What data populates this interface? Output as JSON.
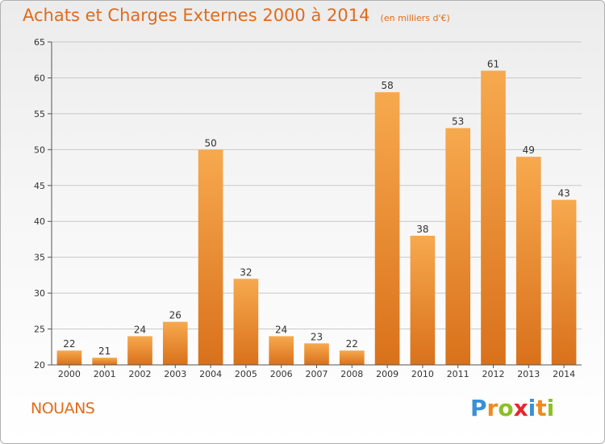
{
  "title": "Achats et Charges Externes 2000 à 2014",
  "unit": "(en milliers d'€)",
  "commune": "NOUANS",
  "logo": {
    "letters": [
      "P",
      "r",
      "o",
      "x",
      "i",
      "t",
      "i"
    ],
    "colors": [
      "#3a8fd8",
      "#f08a1c",
      "#8cbf26",
      "#e8262c",
      "#3a8fd8",
      "#f08a1c",
      "#8cbf26"
    ]
  },
  "colors": {
    "bar_light": "#f7a94e",
    "bar_dark": "#d9711b",
    "title": "#e06c1c",
    "grid": "#c8c8c8"
  },
  "chart_data": {
    "type": "bar",
    "categories": [
      "2000",
      "2001",
      "2002",
      "2003",
      "2004",
      "2005",
      "2006",
      "2007",
      "2008",
      "2009",
      "2010",
      "2011",
      "2012",
      "2013",
      "2014"
    ],
    "values": [
      22,
      21,
      24,
      26,
      50,
      32,
      24,
      23,
      22,
      58,
      38,
      53,
      61,
      49,
      43
    ],
    "data_labels": [
      "22",
      "21",
      "24",
      "26",
      "50",
      "32",
      "24",
      "23",
      "22",
      "58",
      "38",
      "53",
      "61",
      "49",
      "43"
    ],
    "ylim": [
      20,
      65
    ],
    "yticks": [
      20,
      25,
      30,
      35,
      40,
      45,
      50,
      55,
      60,
      65
    ],
    "grid": true,
    "legend": "none"
  }
}
